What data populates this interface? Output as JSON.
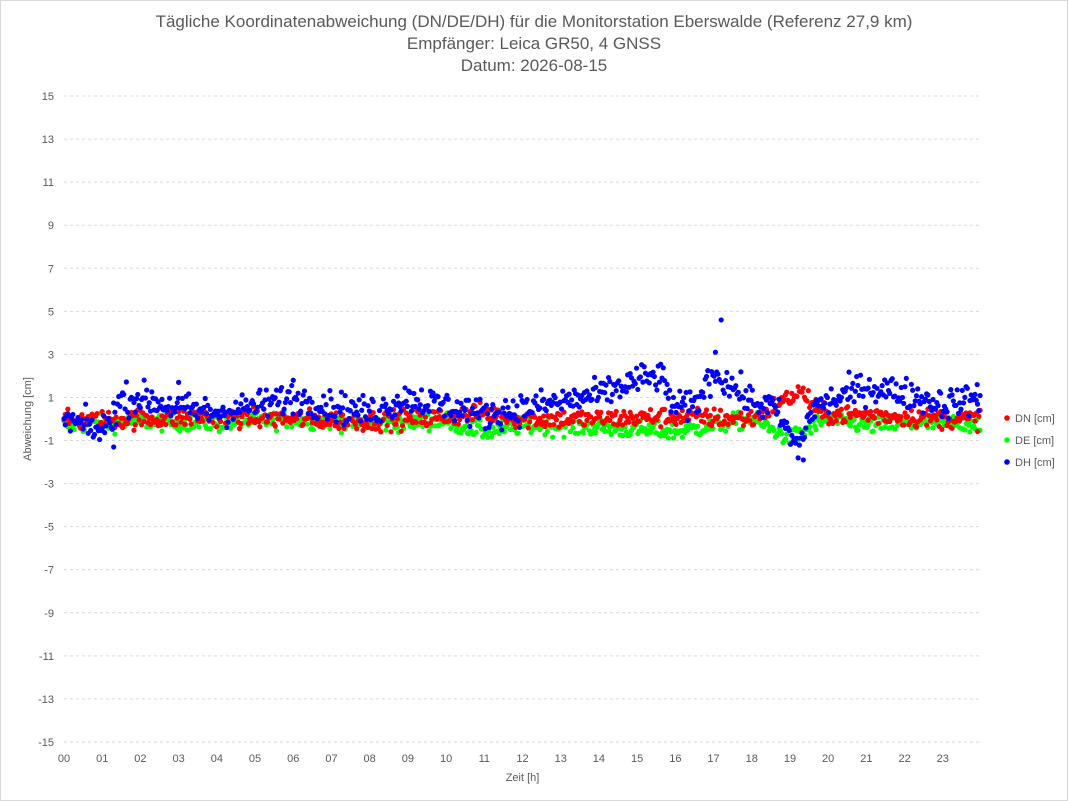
{
  "chart_data": {
    "type": "scatter",
    "title": "Tägliche Koordinatenabweichung (DN/DE/DH) für die Monitorstation Eberswalde (Referenz 27,9 km)",
    "subtitle": "Empfänger: Leica GR50, 4 GNSS",
    "date_line": "Datum: 2026-08-15",
    "xlabel": "Zeit [h]",
    "ylabel": "Abweichung [cm]",
    "xlim": [
      0,
      24
    ],
    "ylim": [
      -15,
      15
    ],
    "x_ticks": [
      "00",
      "01",
      "02",
      "03",
      "04",
      "05",
      "06",
      "07",
      "08",
      "09",
      "10",
      "11",
      "12",
      "13",
      "14",
      "15",
      "16",
      "17",
      "18",
      "19",
      "20",
      "21",
      "22",
      "23"
    ],
    "y_ticks": [
      "15",
      "13",
      "11",
      "9",
      "7",
      "5",
      "3",
      "1",
      "-1",
      "-3",
      "-5",
      "-7",
      "-9",
      "-11",
      "-13",
      "-15"
    ],
    "grid": "horizontal dashed",
    "legend_position": "right",
    "sample_interval_h": 0.0333,
    "series": [
      {
        "name": "DN [cm]",
        "color": "#ff0000",
        "profile": [
          [
            0,
            -0.1
          ],
          [
            2,
            0.0
          ],
          [
            4,
            0.1
          ],
          [
            6,
            0.0
          ],
          [
            8,
            -0.1
          ],
          [
            10,
            0.1
          ],
          [
            11,
            0.3
          ],
          [
            12,
            0.0
          ],
          [
            14,
            0.0
          ],
          [
            16,
            0.1
          ],
          [
            18,
            0.0
          ],
          [
            19.3,
            1.3
          ],
          [
            19.8,
            0.2
          ],
          [
            21,
            0.2
          ],
          [
            23,
            0.0
          ],
          [
            24,
            0.0
          ]
        ],
        "spread": 0.22
      },
      {
        "name": "DE [cm]",
        "color": "#00ff00",
        "profile": [
          [
            0,
            -0.3
          ],
          [
            2,
            -0.1
          ],
          [
            4,
            -0.2
          ],
          [
            6,
            0.0
          ],
          [
            8,
            -0.2
          ],
          [
            10,
            -0.1
          ],
          [
            11,
            -0.6
          ],
          [
            12,
            -0.3
          ],
          [
            14,
            -0.4
          ],
          [
            16,
            -0.6
          ],
          [
            18,
            0.0
          ],
          [
            19,
            -0.9
          ],
          [
            20,
            0.0
          ],
          [
            21,
            -0.3
          ],
          [
            23,
            -0.2
          ],
          [
            24,
            -0.2
          ]
        ],
        "spread": 0.2
      },
      {
        "name": "DH [cm]",
        "color": "#0000ff",
        "profile": [
          [
            0,
            0.0
          ],
          [
            1,
            -0.6
          ],
          [
            1.5,
            0.9
          ],
          [
            2,
            1.0
          ],
          [
            3,
            0.5
          ],
          [
            4,
            0.3
          ],
          [
            5,
            0.6
          ],
          [
            6,
            1.0
          ],
          [
            7,
            0.6
          ],
          [
            8,
            0.3
          ],
          [
            9,
            1.0
          ],
          [
            10,
            0.6
          ],
          [
            11,
            0.2
          ],
          [
            12,
            0.5
          ],
          [
            13,
            0.8
          ],
          [
            14,
            1.1
          ],
          [
            15,
            1.8
          ],
          [
            15.6,
            2.0
          ],
          [
            16,
            0.5
          ],
          [
            16.5,
            0.6
          ],
          [
            17,
            2.2
          ],
          [
            17.5,
            1.5
          ],
          [
            18,
            0.8
          ],
          [
            18.6,
            0.5
          ],
          [
            19.2,
            -1.4
          ],
          [
            19.6,
            0.5
          ],
          [
            20,
            0.8
          ],
          [
            21,
            1.5
          ],
          [
            22,
            1.2
          ],
          [
            23,
            0.7
          ],
          [
            24,
            1.0
          ]
        ],
        "spread": 0.35,
        "outliers": [
          [
            17.2,
            4.6
          ],
          [
            17.05,
            3.1
          ],
          [
            6.0,
            1.8
          ],
          [
            3.0,
            1.7
          ],
          [
            23.9,
            1.6
          ],
          [
            19.35,
            -1.9
          ],
          [
            1.3,
            -1.3
          ]
        ]
      }
    ]
  }
}
